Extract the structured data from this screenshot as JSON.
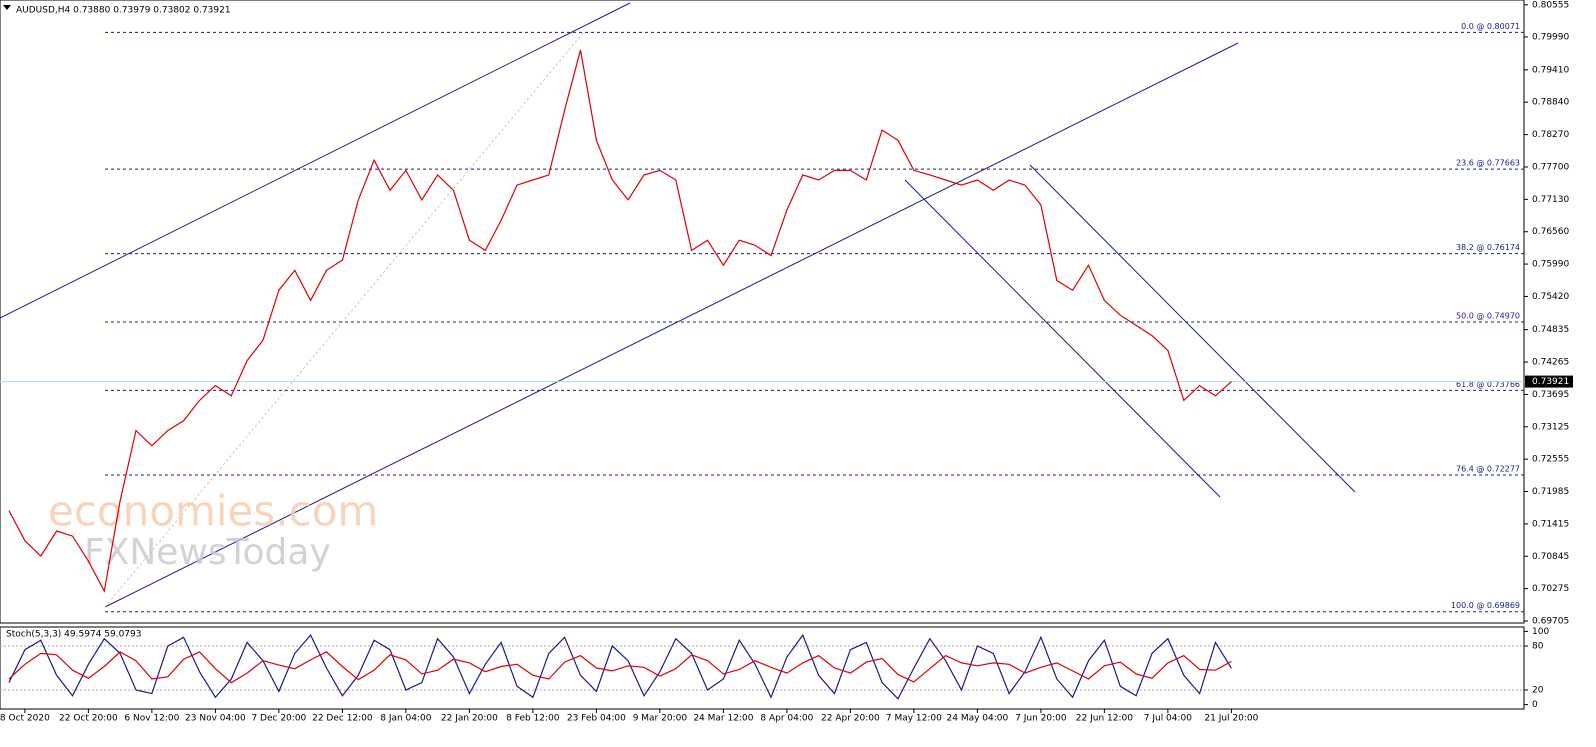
{
  "chart_data": [
    {
      "type": "line",
      "title": "AUDUSD,H4 0.73880 0.73979 0.73802 0.73921",
      "categories": [
        null,
        "8 Oct 2020",
        null,
        null,
        null,
        "22 Oct 20:00",
        null,
        null,
        null,
        "6 Nov 12:00",
        null,
        null,
        null,
        "23 Nov 04:00",
        null,
        null,
        null,
        "7 Dec 20:00",
        null,
        null,
        null,
        "22 Dec 12:00",
        null,
        null,
        null,
        "8 Jan 04:00",
        null,
        null,
        null,
        "22 Jan 20:00",
        null,
        null,
        null,
        "8 Feb 12:00",
        null,
        null,
        null,
        "23 Feb 04:00",
        null,
        null,
        null,
        "9 Mar 20:00",
        null,
        null,
        null,
        "24 Mar 12:00",
        null,
        null,
        null,
        "8 Apr 04:00",
        null,
        null,
        null,
        "22 Apr 20:00",
        null,
        null,
        null,
        "7 May 12:00",
        null,
        null,
        null,
        "24 May 04:00",
        null,
        null,
        null,
        "7 Jun 20:00",
        null,
        null,
        null,
        "22 Jun 12:00",
        null,
        null,
        null,
        "7 Jul 04:00",
        null,
        null,
        null,
        "21 Jul 20:00"
      ],
      "series": [
        {
          "color": "#e00000",
          "values": [
            0.7165,
            0.7112,
            0.7085,
            0.7129,
            0.712,
            0.7076,
            0.7023,
            0.7182,
            0.7306,
            0.7279,
            0.7306,
            0.7323,
            0.7359,
            0.7385,
            0.7367,
            0.7429,
            0.7465,
            0.7553,
            0.7588,
            0.7535,
            0.7588,
            0.7606,
            0.7712,
            0.7782,
            0.7729,
            0.7764,
            0.7712,
            0.7756,
            0.7729,
            0.7641,
            0.7623,
            0.7676,
            0.7738,
            0.7747,
            0.7756,
            0.787,
            0.7976,
            0.7817,
            0.7747,
            0.7712,
            0.7756,
            0.7764,
            0.7747,
            0.7623,
            0.7641,
            0.7597,
            0.7641,
            0.7632,
            0.7614,
            0.7694,
            0.7756,
            0.7747,
            0.7764,
            0.7764,
            0.7747,
            0.7835,
            0.7817,
            0.7764,
            0.7756,
            0.7747,
            0.7738,
            0.7747,
            0.7729,
            0.7747,
            0.7738,
            0.7703,
            0.757,
            0.7553,
            0.7597,
            0.7535,
            0.7509,
            0.7491,
            0.7473,
            0.7447,
            0.7359,
            0.7385,
            0.7367,
            0.73921
          ]
        }
      ],
      "ylim": [
        0.6967,
        0.8064
      ],
      "yticks": [
        0.80555,
        {
          "value": 0.7999,
          "label": "0.79990"
        },
        {
          "value": 0.7941,
          "label": "0.79410"
        },
        {
          "value": 0.7884,
          "label": "0.78840"
        },
        {
          "value": 0.7827,
          "label": "0.78270"
        },
        {
          "value": 0.777,
          "label": "0.77700"
        },
        {
          "value": 0.7713,
          "label": "0.77130"
        },
        {
          "value": 0.7656,
          "label": "0.76560"
        },
        {
          "value": 0.7599,
          "label": "0.75990"
        },
        {
          "value": 0.7542,
          "label": "0.75420"
        },
        0.74835,
        0.74265,
        0.73695,
        0.73125,
        0.72555,
        0.71985,
        0.71415,
        0.70845,
        0.70275,
        0.69705
      ],
      "last_price": 0.73921,
      "fib_levels": [
        {
          "label": "0.0 @ 0.80071",
          "value": 0.80071
        },
        {
          "label": "23.6 @ 0.77663",
          "value": 0.77663
        },
        {
          "label": "38.2 @ 0.76174",
          "value": 0.76174
        },
        {
          "label": "50.0 @ 0.74970",
          "value": 0.7497
        },
        {
          "label": "61.8 @ 0.73766",
          "value": 0.73766
        },
        {
          "label": "76.4 @ 0.72277",
          "value": 0.72277
        },
        {
          "label": "100.0 @ 0.69869",
          "value": 0.69869
        }
      ],
      "watermarks": [
        "economies.com",
        "FXNewsToday"
      ]
    },
    {
      "type": "line",
      "title": "Stoch(5,3,3) 49.5974 59.0793",
      "series": [
        {
          "color": "#1a1a8c",
          "values": [
            30,
            75,
            88,
            40,
            12,
            55,
            90,
            70,
            20,
            15,
            80,
            92,
            45,
            10,
            35,
            85,
            60,
            18,
            70,
            95,
            50,
            12,
            40,
            88,
            75,
            20,
            30,
            90,
            65,
            15,
            55,
            85,
            25,
            10,
            70,
            92,
            40,
            18,
            80,
            60,
            12,
            45,
            90,
            70,
            20,
            35,
            88,
            55,
            10,
            65,
            95,
            40,
            15,
            75,
            85,
            30,
            8,
            50,
            90,
            60,
            20,
            80,
            70,
            15,
            45,
            92,
            35,
            10,
            60,
            88,
            25,
            12,
            70,
            90,
            40,
            15,
            85,
            49.5974
          ]
        },
        {
          "color": "#e00000",
          "values": [
            35,
            55,
            70,
            68,
            47,
            36,
            52,
            72,
            60,
            35,
            38,
            62,
            72,
            49,
            30,
            43,
            60,
            54,
            49,
            61,
            72,
            52,
            34,
            47,
            68,
            61,
            42,
            47,
            62,
            57,
            45,
            52,
            55,
            40,
            35,
            58,
            67,
            50,
            46,
            53,
            51,
            39,
            49,
            68,
            60,
            42,
            48,
            60,
            51,
            43,
            57,
            67,
            50,
            43,
            58,
            63,
            41,
            31,
            49,
            67,
            57,
            53,
            57,
            55,
            43,
            51,
            57,
            46,
            35,
            53,
            58,
            42,
            36,
            57,
            67,
            48,
            47,
            59.0793
          ]
        }
      ],
      "ylim": [
        -6,
        106
      ],
      "yticks": [
        0,
        20,
        80,
        100
      ],
      "levels": [
        20,
        80
      ]
    }
  ]
}
